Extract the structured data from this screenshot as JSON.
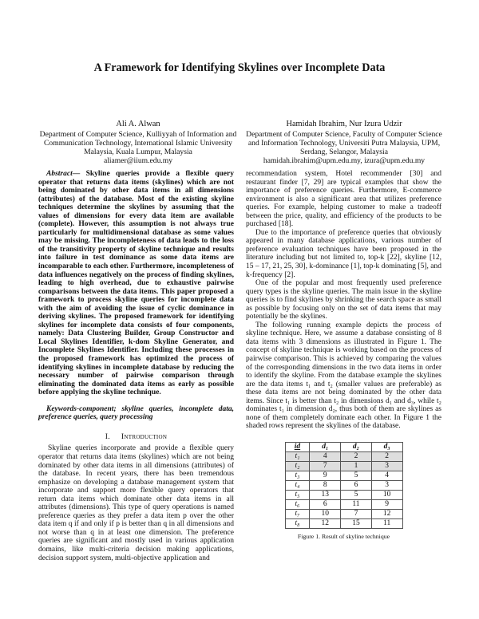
{
  "paper": {
    "title": "A Framework for Identifying Skylines over Incomplete Data",
    "authors": [
      {
        "name": "Ali A. Alwan",
        "affiliation": "Department of Computer Science, Kulliyyah of Information and Communication Technology, International Islamic University Malaysia, Kuala Lumpur, Malaysia",
        "email": "aliamer@iium.edu.my"
      },
      {
        "name": "Hamidah Ibrahim, Nur Izura Udzir",
        "affiliation": "Department of Computer Science, Faculty of Computer Science and Information Technology, Universiti Putra Malaysia, UPM, Serdang, Selangor, Malaysia",
        "email": "hamidah.ibrahim@upm.edu.my, izura@upm.edu.my"
      }
    ],
    "abstract_label": "Abstract—",
    "abstract": " Skyline queries provide a flexible query operator that returns data items (skylines) which are not being dominated by other data items in all dimensions (attributes) of the database. Most of the existing skyline techniques determine the skylines by assuming that the values of dimensions for every data item are available (complete). However, this assumption is not always true particularly for multidimensional database as some values may be missing. The incompleteness of data leads to the loss of the transitivity property of skyline technique and results into failure in test dominance as some data items are incomparable to each other. Furthermore, incompleteness of data influences negatively on the process of finding skylines, leading to high overhead, due to exhaustive pairwise comparisons between the data items. This paper proposed a framework to process skyline queries for incomplete data with the aim of avoiding the issue of cyclic dominance in deriving skylines. The proposed framework for identifying skylines for incomplete data consists of four components, namely: Data Clustering Builder, Group Constructor and Local Skylines Identifier, k-dom Skyline Generator, and Incomplete Skylines Identifier. Including these processes in the proposed framework has optimized the process of identifying skylines in incomplete database by reducing the necessary number of pairwise comparison through eliminating the dominated data items as early as possible before applying the skyline technique.",
    "keywords": "Keywords-component; skyline queries, incomplete data, preference queries, query processing",
    "section": {
      "number": "I.",
      "title": "Introduction"
    },
    "paragraphs_left": [
      "Skyline queries incorporate and provide a flexible query operator that returns data items (skylines) which are not being dominated by other data items in all dimensions (attributes) of the database. In recent years, there has been tremendous emphasize on developing a database management system that incorporate and support more flexible query operators that return data items which dominate other data items in all attributes (dimensions). This type of query operations is named preference queries as they prefer a data item p over the other data item q if and only if p is better than q in all dimensions and not worse than q in at least one dimension. The preference queries are significant and mostly used in various application domains, like multi-criteria decision making applications, decision support system, multi-objective application and"
    ],
    "paragraphs_right": [
      "recommendation system, Hotel recommender [30] and restaurant finder [7, 29] are typical examples that show the importance of preference queries. Furthermore, E-commerce environment is also a significant area that utilizes preference queries. For example, helping customer to make a tradeoff between the price, quality, and efficiency of the products to be purchased [18].",
      "Due to the importance of preference queries that obviously appeared in many database applications, various number of preference evaluation techniques have been proposed in the literature including but not limited to, top-k [22], skyline [12, 15 – 17, 21, 25, 30], k-dominance [1], top-k dominating [5], and k-frequency [2].",
      "One of the popular and most frequently used preference query types is the skyline queries. The main issue in the skyline queries is to find skylines by shrinking the search space as small as possible by focusing only on the set of data items that may potentially be the skylines.",
      "The following running example depicts the process of skyline technique. Here, we assume a database consisting of 8 data items with 3 dimensions as illustrated in Figure 1. The concept of skyline technique is working based on the process of pairwise comparison. This is achieved by comparing the values of the corresponding dimensions in the two data items in order to identify the skyline. From the database example the skylines are the data items t₁ and t₂ (smaller values are preferable) as these data items are not being dominated by the other data items. Since t₁ is better than t₂ in dimensions d₁ and d₃, while t₂ dominates t₁ in dimension d₂, thus both of them are skylines as none of them completely dominate each other. In Figure 1 the shaded rows represent the skylines of the database."
    ],
    "figure": {
      "headers": [
        "id",
        "d₁",
        "d₂",
        "d₃"
      ],
      "rows": [
        {
          "id": "t₁",
          "d1": "4",
          "d2": "2",
          "d3": "2",
          "shaded": true
        },
        {
          "id": "t₂",
          "d1": "7",
          "d2": "1",
          "d3": "3",
          "shaded": true
        },
        {
          "id": "t₃",
          "d1": "9",
          "d2": "5",
          "d3": "4",
          "shaded": false
        },
        {
          "id": "t₄",
          "d1": "8",
          "d2": "6",
          "d3": "3",
          "shaded": false
        },
        {
          "id": "t₅",
          "d1": "13",
          "d2": "5",
          "d3": "10",
          "shaded": false
        },
        {
          "id": "t₆",
          "d1": "6",
          "d2": "11",
          "d3": "9",
          "shaded": false
        },
        {
          "id": "t₇",
          "d1": "10",
          "d2": "7",
          "d3": "12",
          "shaded": false
        },
        {
          "id": "t₈",
          "d1": "12",
          "d2": "15",
          "d3": "11",
          "shaded": false
        }
      ],
      "shade_color": "#dedede",
      "caption": "Figure 1. Result of skyline technique"
    }
  }
}
